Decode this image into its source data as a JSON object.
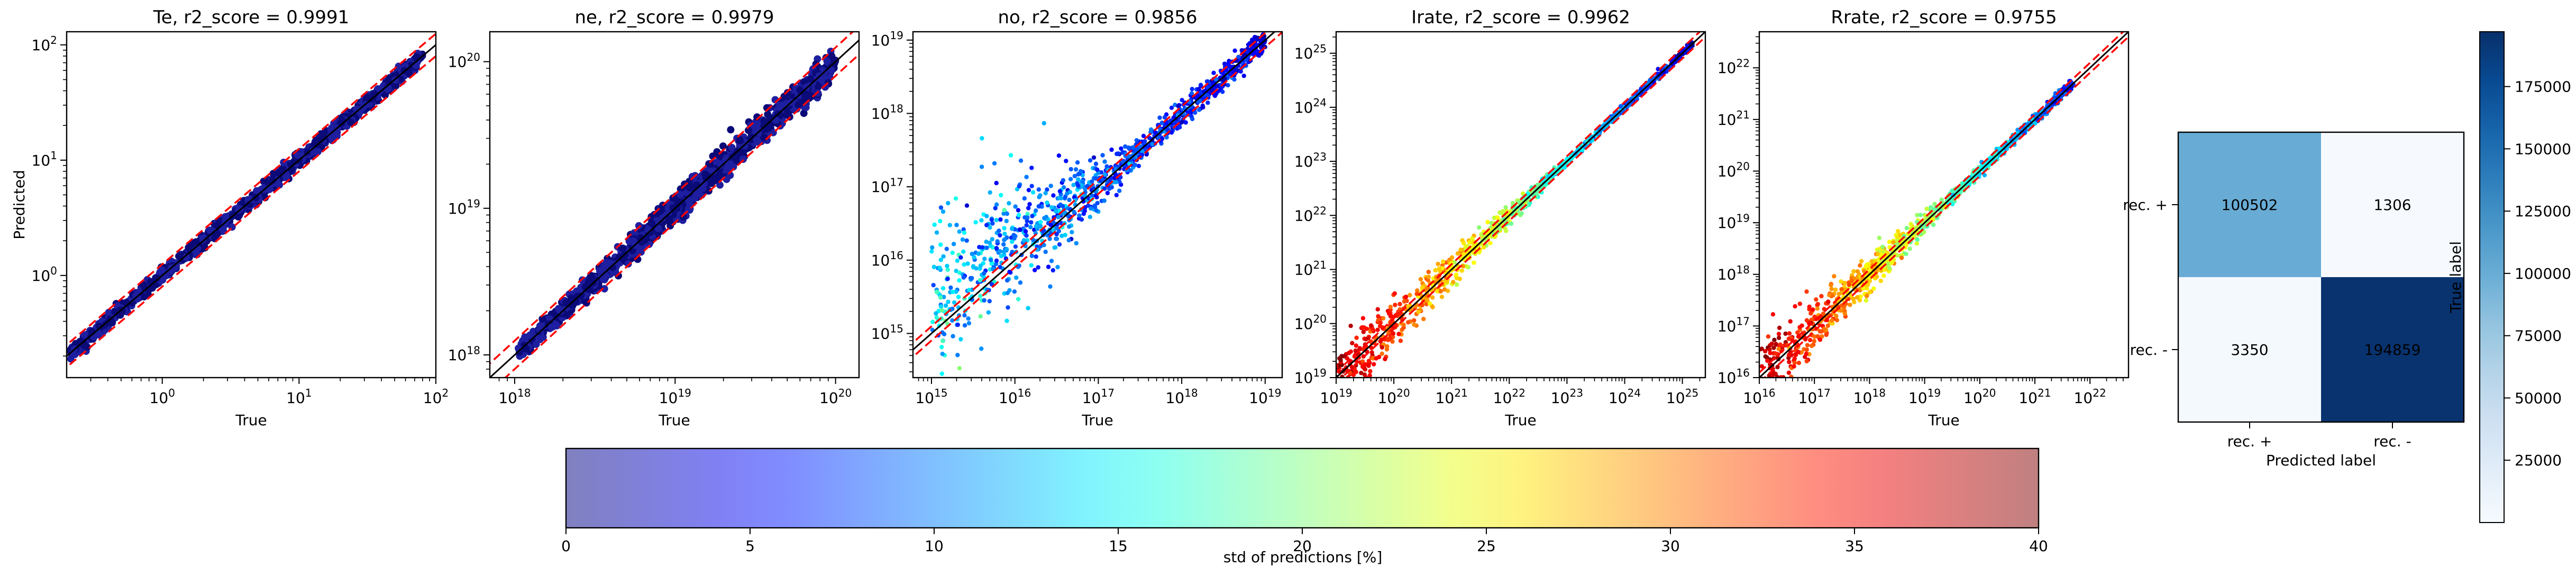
{
  "chart_data": [
    {
      "type": "scatter",
      "id": "p0",
      "title": "Te, r2_score = 0.9991",
      "xlabel": "True",
      "ylabel": "Predicted",
      "log": true,
      "xlim": [
        0.2,
        100
      ],
      "ylim": [
        0.13,
        130
      ],
      "xticks": [
        {
          "v": 1,
          "exp": "0"
        },
        {
          "v": 10,
          "exp": "1"
        },
        {
          "v": 100,
          "exp": "2"
        }
      ],
      "yticks": [
        {
          "v": 1,
          "exp": "0"
        },
        {
          "v": 10,
          "exp": "1"
        },
        {
          "v": 100,
          "exp": "2"
        }
      ],
      "data_range": [
        0.21,
        80
      ],
      "band_factor": 1.25,
      "noise_low": 0.03,
      "noise_high": 0.03,
      "std_low": 1,
      "std_high": 3
    },
    {
      "type": "scatter",
      "id": "p1",
      "title": "ne, r2_score = 0.9979",
      "xlabel": "True",
      "ylabel": "",
      "log": true,
      "xlim": [
        7e+17,
        1.4e+20
      ],
      "ylim": [
        7e+17,
        1.6e+20
      ],
      "xticks": [
        {
          "v": 1e+18,
          "exp": "18"
        },
        {
          "v": 1e+19,
          "exp": "19"
        },
        {
          "v": 1e+20,
          "exp": "20"
        }
      ],
      "yticks": [
        {
          "v": 1e+18,
          "exp": "18"
        },
        {
          "v": 1e+19,
          "exp": "19"
        },
        {
          "v": 1e+20,
          "exp": "20"
        }
      ],
      "data_range": [
        1.05e+18,
        1e+20
      ],
      "band_factor": 1.25,
      "noise_low": 0.03,
      "noise_high": 0.05,
      "std_low": 1,
      "std_high": 3
    },
    {
      "type": "scatter",
      "id": "p2",
      "title": "no, r2_score = 0.9856",
      "xlabel": "True",
      "ylabel": "",
      "log": true,
      "xlim": [
        600000000000000.0,
        1.6e+19
      ],
      "ylim": [
        250000000000000.0,
        1.3e+19
      ],
      "xticks": [
        {
          "v": 1000000000000000.0,
          "exp": "15"
        },
        {
          "v": 1e+16,
          "exp": "16"
        },
        {
          "v": 1e+17,
          "exp": "17"
        },
        {
          "v": 1e+18,
          "exp": "18"
        },
        {
          "v": 1e+19,
          "exp": "19"
        }
      ],
      "yticks": [
        {
          "v": 1000000000000000.0,
          "exp": "15"
        },
        {
          "v": 1e+16,
          "exp": "16"
        },
        {
          "v": 1e+17,
          "exp": "17"
        },
        {
          "v": 1e+18,
          "exp": "18"
        },
        {
          "v": 1e+19,
          "exp": "19"
        }
      ],
      "data_range": [
        1000000000000000.0,
        1e+19
      ],
      "band_factor": 1.25,
      "noise_low": 0.6,
      "noise_high": 0.08,
      "std_low": 8,
      "std_high": 4
    },
    {
      "type": "scatter",
      "id": "p3",
      "title": "Irate, r2_score = 0.9962",
      "xlabel": "True",
      "ylabel": "",
      "log": true,
      "xlim": [
        1e+19,
        2.5e+25
      ],
      "ylim": [
        1e+19,
        2.5e+25
      ],
      "xticks": [
        {
          "v": 1e+19,
          "exp": "19"
        },
        {
          "v": 1e+20,
          "exp": "20"
        },
        {
          "v": 1e+21,
          "exp": "21"
        },
        {
          "v": 1e+22,
          "exp": "22"
        },
        {
          "v": 1e+23,
          "exp": "23"
        },
        {
          "v": 1e+24,
          "exp": "24"
        },
        {
          "v": 1e+25,
          "exp": "25"
        }
      ],
      "yticks": [
        {
          "v": 1e+19,
          "exp": "19"
        },
        {
          "v": 1e+20,
          "exp": "20"
        },
        {
          "v": 1e+21,
          "exp": "21"
        },
        {
          "v": 1e+22,
          "exp": "22"
        },
        {
          "v": 1e+23,
          "exp": "23"
        },
        {
          "v": 1e+24,
          "exp": "24"
        },
        {
          "v": 1e+25,
          "exp": "25"
        }
      ],
      "data_range": [
        1e+19,
        1.5e+25
      ],
      "band_factor": 1.25,
      "noise_low": 0.3,
      "noise_high": 0.03,
      "std_low": 38,
      "std_high": 3
    },
    {
      "type": "scatter",
      "id": "p4",
      "title": "Rrate, r2_score = 0.9755",
      "xlabel": "True",
      "ylabel": "",
      "log": true,
      "xlim": [
        1e+16,
        5e+22
      ],
      "ylim": [
        1e+16,
        5e+22
      ],
      "xticks": [
        {
          "v": 1e+16,
          "exp": "16"
        },
        {
          "v": 1e+17,
          "exp": "17"
        },
        {
          "v": 1e+18,
          "exp": "18"
        },
        {
          "v": 1e+19,
          "exp": "19"
        },
        {
          "v": 1e+20,
          "exp": "20"
        },
        {
          "v": 1e+21,
          "exp": "21"
        },
        {
          "v": 1e+22,
          "exp": "22"
        }
      ],
      "yticks": [
        {
          "v": 1e+16,
          "exp": "16"
        },
        {
          "v": 1e+17,
          "exp": "17"
        },
        {
          "v": 1e+18,
          "exp": "18"
        },
        {
          "v": 1e+19,
          "exp": "19"
        },
        {
          "v": 1e+20,
          "exp": "20"
        },
        {
          "v": 1e+21,
          "exp": "21"
        },
        {
          "v": 1e+22,
          "exp": "22"
        }
      ],
      "data_range": [
        1e+16,
        5e+21
      ],
      "band_factor": 1.25,
      "noise_low": 0.35,
      "noise_high": 0.05,
      "std_low": 38,
      "std_high": 6
    },
    {
      "type": "heatmap",
      "id": "confusion",
      "title": "",
      "xlabel": "Predicted label",
      "ylabel": "True label",
      "xticklabels": [
        "rec. +",
        "rec. -"
      ],
      "yticklabels": [
        "rec. +",
        "rec. -"
      ],
      "values": [
        [
          100502,
          1306
        ],
        [
          3350,
          194859
        ]
      ],
      "colormap": "Blues",
      "colorbar": {
        "range": [
          0,
          197000
        ],
        "ticks": [
          "25000",
          "50000",
          "75000",
          "100000",
          "125000",
          "150000",
          "175000"
        ],
        "tick_values": [
          25000,
          50000,
          75000,
          100000,
          125000,
          150000,
          175000
        ]
      }
    }
  ],
  "colorbar_std": {
    "label": "std of predictions [%]",
    "range": [
      0,
      40
    ],
    "ticks": [
      "0",
      "5",
      "10",
      "15",
      "20",
      "25",
      "30",
      "35",
      "40"
    ],
    "tick_values": [
      0,
      5,
      10,
      15,
      20,
      25,
      30,
      35,
      40
    ],
    "colormap": "jet"
  },
  "colors": {
    "identity_line": "#000000",
    "band_lines": "#ff0000"
  }
}
